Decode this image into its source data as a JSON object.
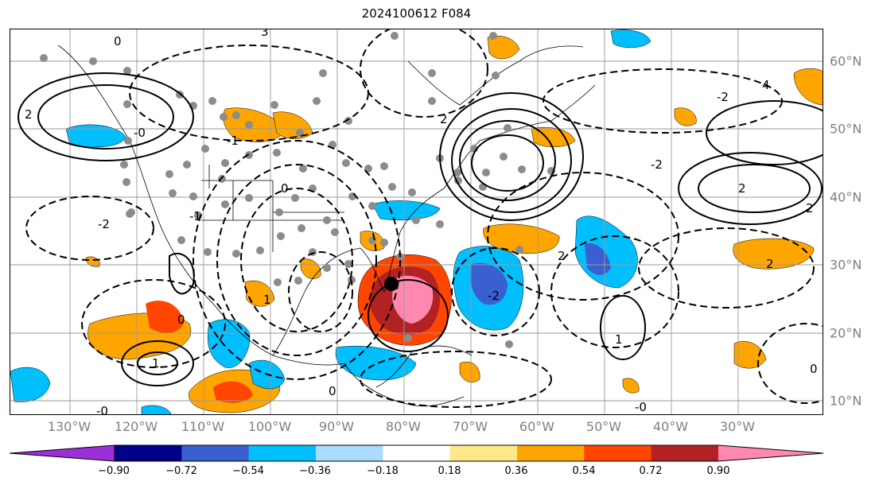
{
  "title": "2024100612 F084",
  "map": {
    "lon_labels": [
      "130°W",
      "120°W",
      "110°W",
      "100°W",
      "90°W",
      "80°W",
      "70°W",
      "60°W",
      "50°W",
      "40°W",
      "30°W"
    ],
    "lat_labels": [
      "60°N",
      "50°N",
      "40°N",
      "30°N",
      "20°N",
      "10°N"
    ],
    "contour_labels": [
      "0",
      "2",
      "3",
      "4",
      "-0",
      "-2",
      "2",
      "0",
      "1",
      "-1",
      "-2",
      "2",
      "2",
      "0",
      "2",
      "-2",
      "1",
      "0",
      "-0",
      "0",
      "-1",
      "1",
      "-0",
      "2",
      "-2"
    ]
  },
  "colorbar": {
    "ticks": [
      "−0.90",
      "−0.72",
      "−0.54",
      "−0.36",
      "−0.18",
      "0.18",
      "0.36",
      "0.54",
      "0.72",
      "0.90"
    ],
    "colors": [
      "#9b30d8",
      "#00008b",
      "#3a5fd0",
      "#00bfff",
      "#aadcff",
      "#ffffff",
      "#ffe88a",
      "#ffa500",
      "#ff4500",
      "#b22222",
      "#ff88b0"
    ]
  }
}
